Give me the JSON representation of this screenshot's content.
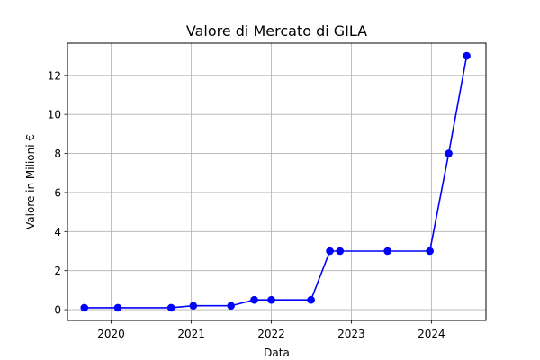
{
  "chart_data": {
    "type": "line",
    "title": "Valore di Mercato di GILA",
    "xlabel": "Data",
    "ylabel": "Valore in Milioni €",
    "x_axis_type": "date",
    "xlim": [
      "2019-06-16",
      "2024-09-06"
    ],
    "ylim": [
      -0.55,
      13.65
    ],
    "x_ticks": [
      {
        "value": "2020-01-01",
        "label": "2020"
      },
      {
        "value": "2021-01-01",
        "label": "2021"
      },
      {
        "value": "2022-01-01",
        "label": "2022"
      },
      {
        "value": "2023-01-01",
        "label": "2023"
      },
      {
        "value": "2024-01-01",
        "label": "2024"
      }
    ],
    "y_ticks": [
      {
        "value": 0,
        "label": "0"
      },
      {
        "value": 2,
        "label": "2"
      },
      {
        "value": 4,
        "label": "4"
      },
      {
        "value": 6,
        "label": "6"
      },
      {
        "value": 8,
        "label": "8"
      },
      {
        "value": 10,
        "label": "10"
      },
      {
        "value": 12,
        "label": "12"
      }
    ],
    "grid": true,
    "line_color": "#0000ff",
    "marker_color": "#0000ff",
    "series": [
      {
        "values": [
          {
            "x": "2019-09-01",
            "y": 0.1
          },
          {
            "x": "2020-02-01",
            "y": 0.1
          },
          {
            "x": "2020-10-01",
            "y": 0.1
          },
          {
            "x": "2021-01-10",
            "y": 0.2
          },
          {
            "x": "2021-07-01",
            "y": 0.2
          },
          {
            "x": "2021-10-15",
            "y": 0.5
          },
          {
            "x": "2022-01-01",
            "y": 0.5
          },
          {
            "x": "2022-07-01",
            "y": 0.5
          },
          {
            "x": "2022-09-25",
            "y": 3
          },
          {
            "x": "2022-11-10",
            "y": 3
          },
          {
            "x": "2023-06-15",
            "y": 3
          },
          {
            "x": "2023-12-25",
            "y": 3
          },
          {
            "x": "2024-03-20",
            "y": 8
          },
          {
            "x": "2024-06-10",
            "y": 13
          }
        ]
      }
    ]
  }
}
